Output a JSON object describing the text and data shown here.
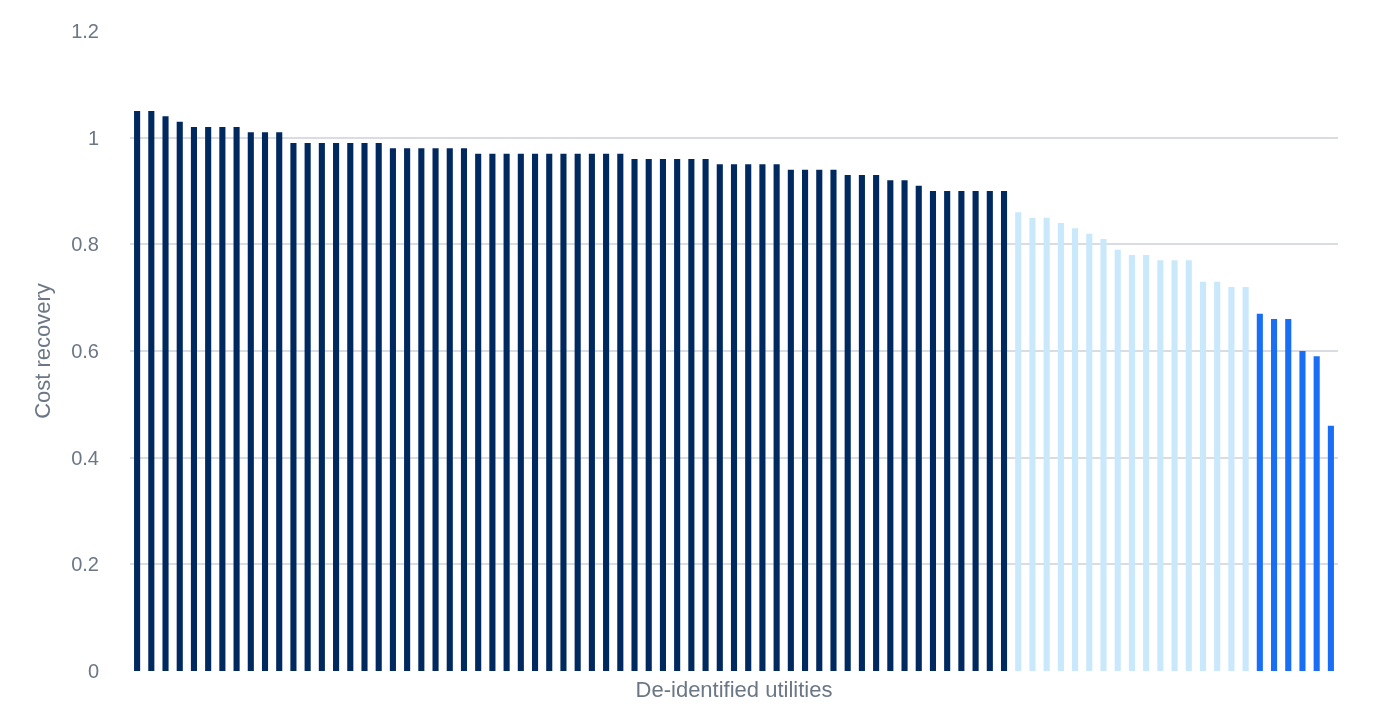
{
  "chart_data": {
    "type": "bar",
    "xlabel": "De-identified utilities",
    "ylabel": "Cost recovery",
    "categories": [
      null,
      null,
      null,
      null,
      null,
      null,
      null,
      null,
      null,
      null,
      null,
      null,
      null,
      null,
      null,
      null,
      null,
      null,
      null,
      null,
      null,
      null,
      null,
      null,
      null,
      null,
      null,
      null,
      null,
      null,
      null,
      null,
      null,
      null,
      null,
      null,
      null,
      null,
      null,
      null,
      null,
      null,
      null,
      null,
      null,
      null,
      null,
      null,
      null,
      null,
      null,
      null,
      null,
      null,
      null,
      null,
      null,
      null,
      null,
      null,
      null,
      null,
      null,
      null,
      null,
      null,
      null,
      null,
      null,
      null,
      null,
      null,
      null,
      null,
      null,
      null,
      null,
      null,
      null,
      null,
      null,
      null,
      null,
      null,
      null
    ],
    "values": [
      1.05,
      1.05,
      1.04,
      1.03,
      1.02,
      1.02,
      1.02,
      1.02,
      1.01,
      1.01,
      1.01,
      0.99,
      0.99,
      0.99,
      0.99,
      0.99,
      0.99,
      0.99,
      0.98,
      0.98,
      0.98,
      0.98,
      0.98,
      0.98,
      0.97,
      0.97,
      0.97,
      0.97,
      0.97,
      0.97,
      0.97,
      0.97,
      0.97,
      0.97,
      0.97,
      0.96,
      0.96,
      0.96,
      0.96,
      0.96,
      0.96,
      0.95,
      0.95,
      0.95,
      0.95,
      0.95,
      0.94,
      0.94,
      0.94,
      0.94,
      0.93,
      0.93,
      0.93,
      0.92,
      0.92,
      0.91,
      0.9,
      0.9,
      0.9,
      0.9,
      0.9,
      0.9,
      0.86,
      0.85,
      0.85,
      0.84,
      0.83,
      0.82,
      0.81,
      0.79,
      0.78,
      0.78,
      0.77,
      0.77,
      0.77,
      0.73,
      0.73,
      0.72,
      0.72,
      0.67,
      0.66,
      0.66,
      0.6,
      0.59,
      0.46
    ],
    "colors": [
      "#002960",
      "#002960",
      "#002960",
      "#002960",
      "#002960",
      "#002960",
      "#002960",
      "#002960",
      "#002960",
      "#002960",
      "#002960",
      "#002960",
      "#002960",
      "#002960",
      "#002960",
      "#002960",
      "#002960",
      "#002960",
      "#002960",
      "#002960",
      "#002960",
      "#002960",
      "#002960",
      "#002960",
      "#002960",
      "#002960",
      "#002960",
      "#002960",
      "#002960",
      "#002960",
      "#002960",
      "#002960",
      "#002960",
      "#002960",
      "#002960",
      "#002960",
      "#002960",
      "#002960",
      "#002960",
      "#002960",
      "#002960",
      "#002960",
      "#002960",
      "#002960",
      "#002960",
      "#002960",
      "#002960",
      "#002960",
      "#002960",
      "#002960",
      "#002960",
      "#002960",
      "#002960",
      "#002960",
      "#002960",
      "#002960",
      "#002960",
      "#002960",
      "#002960",
      "#002960",
      "#002960",
      "#002960",
      "#c9e8fb",
      "#c9e8fb",
      "#c9e8fb",
      "#c9e8fb",
      "#c9e8fb",
      "#c9e8fb",
      "#c9e8fb",
      "#c9e8fb",
      "#c9e8fb",
      "#c9e8fb",
      "#c9e8fb",
      "#c9e8fb",
      "#c9e8fb",
      "#c9e8fb",
      "#c9e8fb",
      "#c9e8fb",
      "#c9e8fb",
      "#1a6ef5",
      "#1a6ef5",
      "#1a6ef5",
      "#1a6ef5",
      "#1a6ef5",
      "#1a6ef5"
    ],
    "ylim": [
      0,
      1.2
    ],
    "yticks": [
      0,
      0.2,
      0.4,
      0.6,
      0.8,
      1,
      1.2
    ],
    "grid": "y"
  }
}
